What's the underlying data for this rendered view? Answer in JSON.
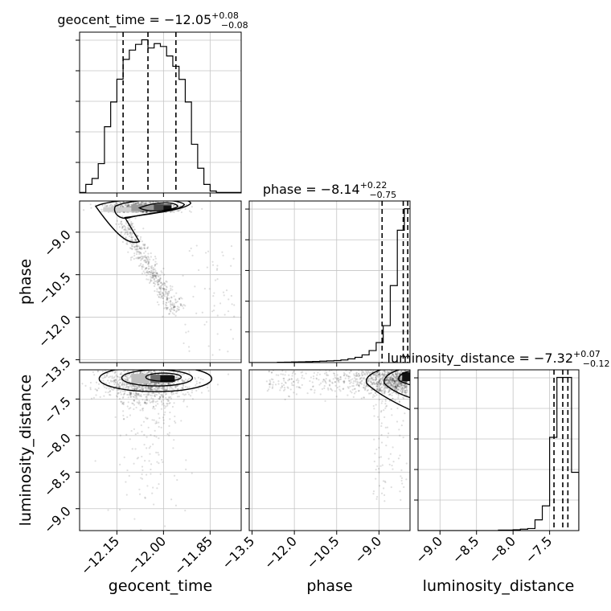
{
  "chart_data": {
    "type": "corner",
    "grid": true,
    "parameters": [
      {
        "name": "geocent_time",
        "axis_label": "geocent_time",
        "title_prefix": "geocent_time = ",
        "median": "−12.05",
        "err_plus": "+0.08",
        "err_minus": "−0.08",
        "range": [
          -12.27,
          -11.75
        ],
        "ticks": [
          -12.15,
          -12.0,
          -11.85
        ],
        "tick_labels": [
          "−12.15",
          "−12.00",
          "−11.85"
        ],
        "quantiles": [
          -12.13,
          -12.05,
          -11.96
        ],
        "hist_bins": [
          -12.27,
          -12.25,
          -12.23,
          -12.21,
          -12.19,
          -12.17,
          -12.15,
          -12.13,
          -12.11,
          -12.09,
          -12.07,
          -12.05,
          -12.03,
          -12.01,
          -11.99,
          -11.97,
          -11.95,
          -11.93,
          -11.91,
          -11.89,
          -11.87,
          -11.85,
          -11.83,
          -11.81,
          -11.79,
          -11.77,
          -11.75
        ],
        "hist_counts": [
          0.3,
          4.5,
          7.6,
          15.4,
          34.8,
          47.8,
          59.8,
          70.2,
          75.1,
          78.1,
          80.5,
          76.2,
          78.5,
          77.0,
          72.0,
          66.6,
          59.7,
          47.8,
          25.6,
          13.0,
          4.5,
          1.0,
          0.3,
          0.3,
          0.3,
          0.3
        ]
      },
      {
        "name": "phase",
        "axis_label": "phase",
        "title_prefix": "phase = ",
        "median": "−8.14",
        "err_plus": "+0.22",
        "err_minus": "−0.75",
        "range": [
          -13.6,
          -7.9
        ],
        "ticks": [
          -13.5,
          -12.0,
          -10.5,
          -9.0
        ],
        "tick_labels": [
          "−13.5",
          "−12.0",
          "−10.5",
          "−9.0"
        ],
        "quantiles": [
          -8.89,
          -8.14,
          -7.98
        ],
        "hist_bins": [
          -13.6,
          -13.35,
          -13.1,
          -12.85,
          -12.6,
          -12.35,
          -12.1,
          -11.85,
          -11.6,
          -11.35,
          -11.1,
          -10.85,
          -10.6,
          -10.35,
          -10.1,
          -9.85,
          -9.6,
          -9.35,
          -9.1,
          -8.85,
          -8.6,
          -8.35,
          -8.1,
          -7.85
        ],
        "hist_counts": [
          0,
          0,
          0,
          0,
          0.2,
          0.3,
          0.4,
          0.5,
          0.6,
          0.7,
          0.9,
          1.1,
          1.3,
          1.7,
          2.4,
          3.4,
          5.0,
          7.8,
          13.0,
          24.0,
          50.0,
          86.0,
          100
        ]
      },
      {
        "name": "luminosity_distance",
        "axis_label": "luminosity_distance",
        "title_prefix": "luminosity_distance = ",
        "median": "−7.32",
        "err_plus": "+0.07",
        "err_minus": "−0.12",
        "range": [
          -9.3,
          -7.1
        ],
        "ticks": [
          -9.0,
          -8.5,
          -8.0,
          -7.5
        ],
        "tick_labels": [
          "−9.0",
          "−8.5",
          "−8.0",
          "−7.5"
        ],
        "quantiles": [
          -7.44,
          -7.32,
          -7.25
        ],
        "hist_bins": [
          -9.3,
          -9.2,
          -9.1,
          -9.0,
          -8.9,
          -8.8,
          -8.7,
          -8.6,
          -8.5,
          -8.4,
          -8.3,
          -8.2,
          -8.1,
          -8.0,
          -7.9,
          -7.8,
          -7.7,
          -7.6,
          -7.5,
          -7.4,
          -7.3,
          -7.2,
          -7.1
        ],
        "hist_counts": [
          0,
          0,
          0,
          0,
          0,
          0,
          0,
          0,
          0,
          0,
          0,
          0.3,
          0.3,
          0.5,
          0.8,
          1.2,
          6.2,
          14.3,
          53.9,
          88.5,
          88.5,
          33.7
        ]
      }
    ],
    "density_peaks": {
      "phase_vs_geocent_time": {
        "x": -12.0,
        "y": -8.2
      },
      "luminosity_distance_vs_geocent_time": {
        "x": -12.0,
        "y": -7.2
      },
      "luminosity_distance_vs_phase": {
        "x": -7.95,
        "y": -7.2
      }
    }
  }
}
